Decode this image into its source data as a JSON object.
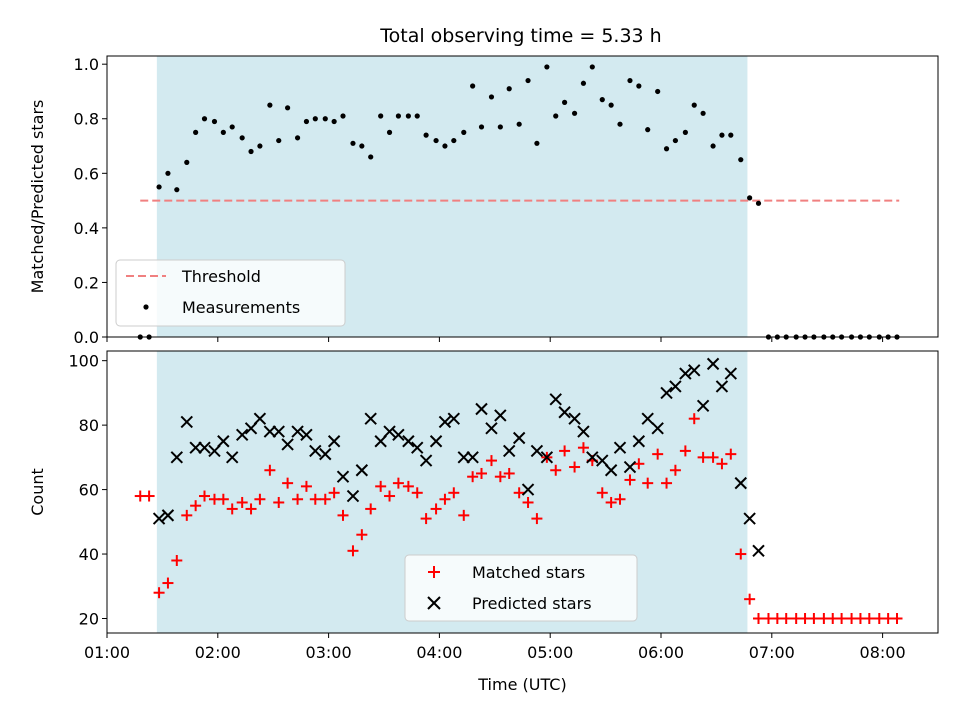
{
  "chart_data": [
    {
      "type": "scatter",
      "title": "Total observing time = 5.33 h",
      "ylabel": "Matched/Predicted stars",
      "xlabel": "",
      "xlim": [
        1.0,
        8.5
      ],
      "ylim": [
        0,
        1.03
      ],
      "yticks": [
        0.0,
        0.2,
        0.4,
        0.6,
        0.8,
        1.0
      ],
      "ytick_labels": [
        "0.0",
        "0.2",
        "0.4",
        "0.6",
        "0.8",
        "1.0"
      ],
      "observing_window": [
        1.45,
        6.78
      ],
      "window_color": "#d3eaf0",
      "legend_position": "lower-left",
      "threshold": {
        "name": "Threshold",
        "x": [
          1.3,
          8.15
        ],
        "y": 0.5,
        "color": "#f08080"
      },
      "series": [
        {
          "name": "Measurements",
          "color": "#000000",
          "x": [
            1.3,
            1.38,
            1.47,
            1.55,
            1.63,
            1.72,
            1.8,
            1.88,
            1.97,
            2.05,
            2.13,
            2.22,
            2.3,
            2.38,
            2.47,
            2.55,
            2.63,
            2.72,
            2.8,
            2.88,
            2.97,
            3.05,
            3.13,
            3.22,
            3.3,
            3.38,
            3.47,
            3.55,
            3.63,
            3.72,
            3.8,
            3.88,
            3.97,
            4.05,
            4.13,
            4.22,
            4.3,
            4.38,
            4.47,
            4.55,
            4.63,
            4.72,
            4.8,
            4.88,
            4.97,
            5.05,
            5.13,
            5.22,
            5.3,
            5.38,
            5.47,
            5.55,
            5.63,
            5.72,
            5.8,
            5.88,
            5.97,
            6.05,
            6.13,
            6.22,
            6.3,
            6.38,
            6.47,
            6.55,
            6.63,
            6.72,
            6.8,
            6.88,
            6.97,
            7.05,
            7.13,
            7.22,
            7.3,
            7.38,
            7.47,
            7.55,
            7.63,
            7.72,
            7.8,
            7.88,
            7.97,
            8.05,
            8.13
          ],
          "y": [
            0,
            0,
            0.55,
            0.6,
            0.54,
            0.64,
            0.75,
            0.8,
            0.79,
            0.75,
            0.77,
            0.73,
            0.68,
            0.7,
            0.85,
            0.72,
            0.84,
            0.73,
            0.79,
            0.8,
            0.8,
            0.79,
            0.81,
            0.71,
            0.7,
            0.66,
            0.81,
            0.75,
            0.81,
            0.81,
            0.81,
            0.74,
            0.72,
            0.7,
            0.72,
            0.75,
            0.92,
            0.77,
            0.88,
            0.77,
            0.91,
            0.78,
            0.94,
            0.71,
            0.99,
            0.81,
            0.86,
            0.82,
            0.93,
            0.99,
            0.87,
            0.85,
            0.78,
            0.94,
            0.92,
            0.76,
            0.9,
            0.69,
            0.72,
            0.75,
            0.85,
            0.82,
            0.7,
            0.74,
            0.74,
            0.65,
            0.51,
            0.49,
            0,
            0,
            0,
            0,
            0,
            0,
            0,
            0,
            0,
            0,
            0,
            0,
            0,
            0,
            0
          ]
        }
      ]
    },
    {
      "type": "scatter",
      "title": "",
      "ylabel": "Count",
      "xlabel": "Time (UTC)",
      "xlim": [
        1.0,
        8.5
      ],
      "ylim": [
        15.5,
        103
      ],
      "yticks": [
        20,
        40,
        60,
        80,
        100
      ],
      "ytick_labels": [
        "20",
        "40",
        "60",
        "80",
        "100"
      ],
      "xticks": [
        1,
        2,
        3,
        4,
        5,
        6,
        7,
        8
      ],
      "xtick_labels": [
        "01:00",
        "02:00",
        "03:00",
        "04:00",
        "05:00",
        "06:00",
        "07:00",
        "08:00"
      ],
      "observing_window": [
        1.45,
        6.78
      ],
      "window_color": "#d3eaf0",
      "legend_position": "lower-center",
      "series": [
        {
          "name": "Matched stars",
          "marker": "plus",
          "color": "#ff0000",
          "x": [
            1.3,
            1.38,
            1.47,
            1.55,
            1.63,
            1.72,
            1.8,
            1.88,
            1.97,
            2.05,
            2.13,
            2.22,
            2.3,
            2.38,
            2.47,
            2.55,
            2.63,
            2.72,
            2.8,
            2.88,
            2.97,
            3.05,
            3.13,
            3.22,
            3.3,
            3.38,
            3.47,
            3.55,
            3.63,
            3.72,
            3.8,
            3.88,
            3.97,
            4.05,
            4.13,
            4.22,
            4.3,
            4.38,
            4.47,
            4.55,
            4.63,
            4.72,
            4.8,
            4.88,
            4.97,
            5.05,
            5.13,
            5.22,
            5.3,
            5.38,
            5.47,
            5.55,
            5.63,
            5.72,
            5.8,
            5.88,
            5.97,
            6.05,
            6.13,
            6.22,
            6.3,
            6.38,
            6.47,
            6.55,
            6.63,
            6.72,
            6.8,
            6.88,
            6.97,
            7.05,
            7.13,
            7.22,
            7.3,
            7.38,
            7.47,
            7.55,
            7.63,
            7.72,
            7.8,
            7.88,
            7.97,
            8.05,
            8.13
          ],
          "y": [
            58,
            58,
            28,
            31,
            38,
            52,
            55,
            58,
            57,
            57,
            54,
            56,
            54,
            57,
            66,
            56,
            62,
            57,
            61,
            57,
            57,
            59,
            52,
            41,
            46,
            54,
            61,
            58,
            62,
            61,
            59,
            51,
            54,
            57,
            59,
            52,
            64,
            65,
            69,
            64,
            65,
            59,
            56,
            51,
            70,
            66,
            72,
            67,
            73,
            69,
            59,
            56,
            57,
            63,
            68,
            62,
            71,
            62,
            66,
            72,
            82,
            70,
            70,
            68,
            71,
            40,
            26,
            20,
            20,
            20,
            20,
            20,
            20,
            20,
            20,
            20,
            20,
            20,
            20,
            20,
            20,
            20,
            20
          ]
        },
        {
          "name": "Predicted stars",
          "marker": "x",
          "color": "#000000",
          "x": [
            1.47,
            1.55,
            1.63,
            1.72,
            1.8,
            1.88,
            1.97,
            2.05,
            2.13,
            2.22,
            2.3,
            2.38,
            2.47,
            2.55,
            2.63,
            2.72,
            2.8,
            2.88,
            2.97,
            3.05,
            3.13,
            3.22,
            3.3,
            3.38,
            3.47,
            3.55,
            3.63,
            3.72,
            3.8,
            3.88,
            3.97,
            4.05,
            4.13,
            4.22,
            4.3,
            4.38,
            4.47,
            4.55,
            4.63,
            4.72,
            4.8,
            4.88,
            4.97,
            5.05,
            5.13,
            5.22,
            5.3,
            5.38,
            5.47,
            5.55,
            5.63,
            5.72,
            5.8,
            5.88,
            5.97,
            6.05,
            6.13,
            6.22,
            6.3,
            6.38,
            6.47,
            6.55,
            6.63,
            6.72,
            6.8,
            6.88
          ],
          "y": [
            51,
            52,
            70,
            81,
            73,
            73,
            72,
            75,
            70,
            77,
            79,
            82,
            78,
            78,
            74,
            78,
            77,
            72,
            71,
            75,
            64,
            58,
            66,
            82,
            75,
            78,
            77,
            75,
            73,
            69,
            75,
            81,
            82,
            70,
            70,
            85,
            79,
            83,
            72,
            76,
            60,
            72,
            70,
            88,
            84,
            82,
            78,
            70,
            69,
            66,
            73,
            67,
            75,
            82,
            79,
            90,
            92,
            96,
            97,
            86,
            99,
            92,
            96,
            62,
            51,
            41
          ]
        }
      ]
    }
  ]
}
